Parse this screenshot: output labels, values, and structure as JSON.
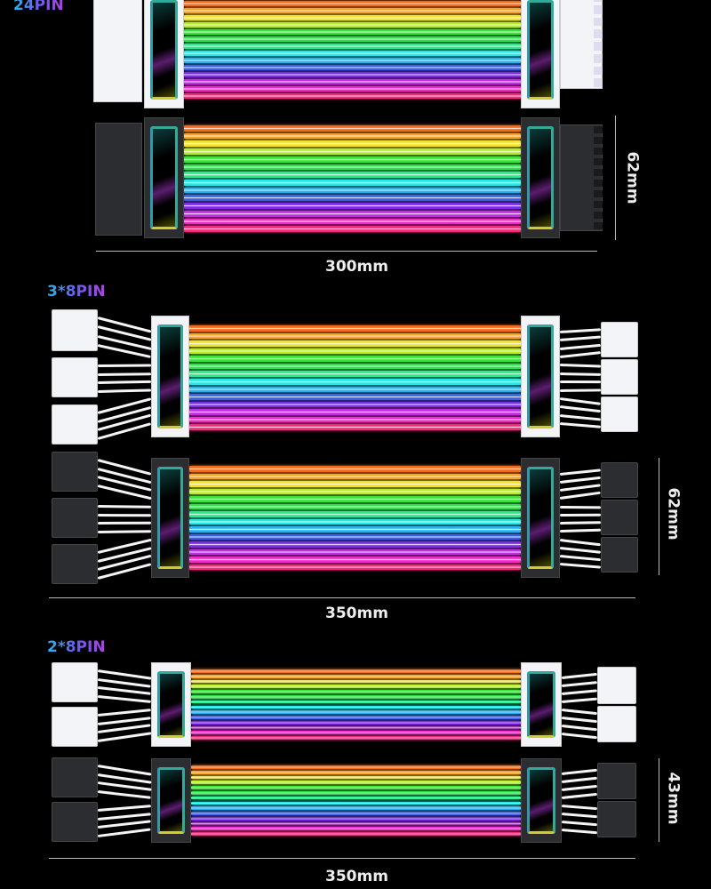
{
  "sections": [
    {
      "label": "24PIN",
      "height_dim": "62mm",
      "length_dim": "300mm"
    },
    {
      "label": "3*8PIN",
      "height_dim": "62mm",
      "length_dim": "350mm"
    },
    {
      "label": "2*8PIN",
      "height_dim": "43mm",
      "length_dim": "350mm"
    }
  ],
  "stripe_colors": [
    "#f26a1b",
    "#f7a12a",
    "#f3e22c",
    "#b9ec2a",
    "#3ae23a",
    "#2fe04c",
    "#2ee88a",
    "#29e6e0",
    "#2ab4ee",
    "#3a62e4",
    "#7a2ee4",
    "#c22ee6",
    "#f02ac8",
    "#f22a7a"
  ],
  "colors": {
    "white_cable": "#f2f4f8",
    "black_cable": "#2b2d31",
    "background": "#000000"
  }
}
